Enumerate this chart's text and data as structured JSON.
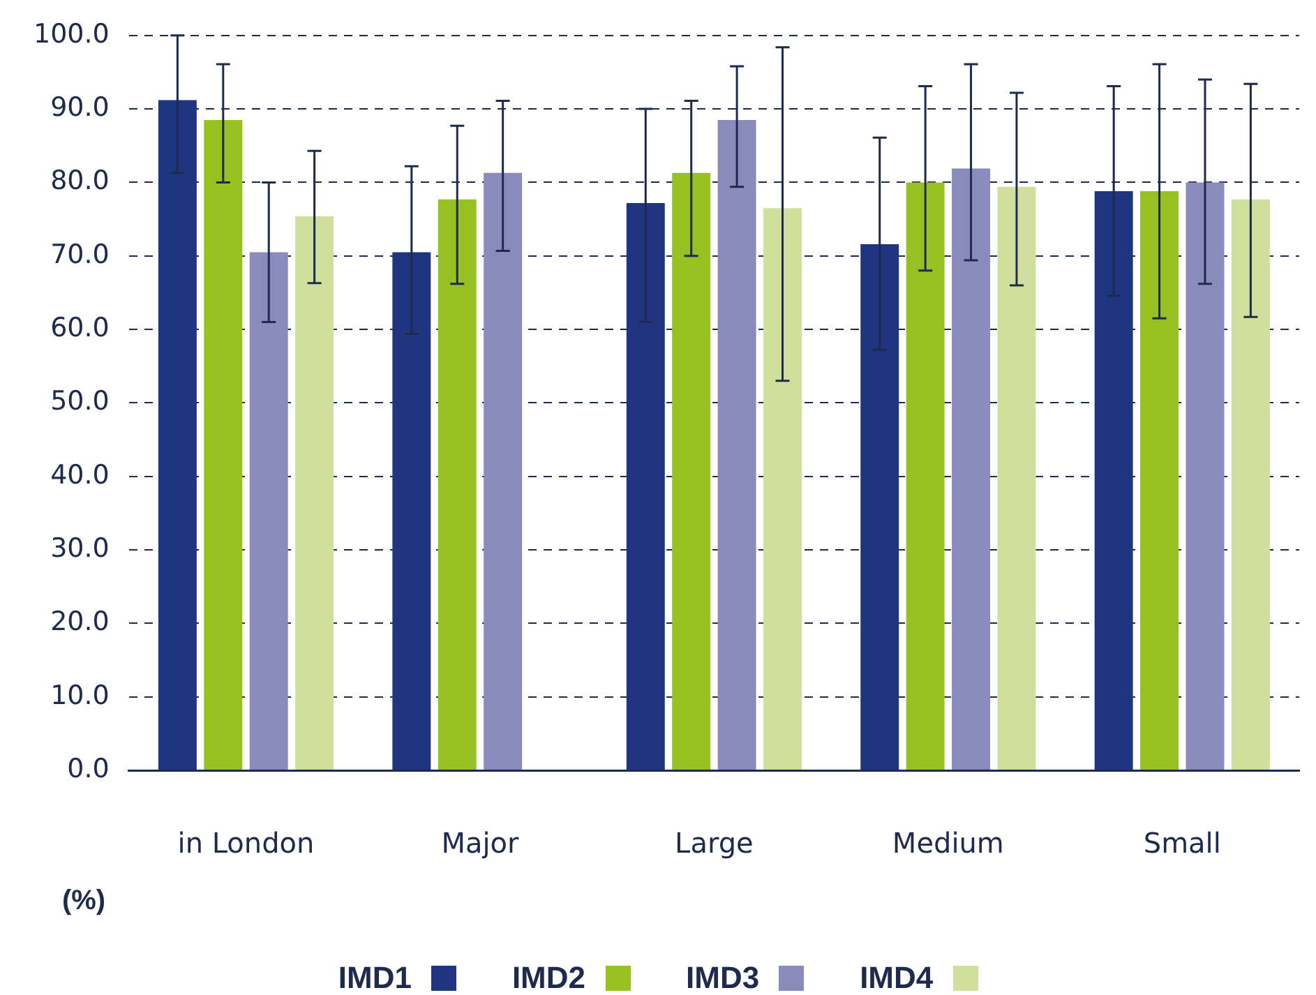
{
  "chart_data": {
    "type": "bar",
    "ylabel": "(%)",
    "categories": [
      "in London",
      "Major",
      "Large",
      "Medium",
      "Small"
    ],
    "series": [
      {
        "name": "IMD1",
        "color": "#1f3580",
        "values": [
          91.2,
          70.5,
          77.2,
          71.6,
          78.8
        ],
        "errors": [
          [
            81.3,
            100
          ],
          [
            59.4,
            82.2
          ],
          [
            61,
            90
          ],
          [
            57.2,
            86.1
          ],
          [
            64.6,
            93.1
          ]
        ]
      },
      {
        "name": "IMD2",
        "color": "#97c121",
        "values": [
          88.5,
          77.7,
          81.3,
          80,
          78.8
        ],
        "errors": [
          [
            80,
            96.1
          ],
          [
            66.2,
            87.7
          ],
          [
            70,
            91.1
          ],
          [
            68,
            93.1
          ],
          [
            61.5,
            96.1
          ]
        ]
      },
      {
        "name": "IMD3",
        "color": "#8a8bbd",
        "values": [
          70.5,
          81.3,
          88.5,
          81.9,
          80
        ],
        "errors": [
          [
            61,
            80
          ],
          [
            70.7,
            91.1
          ],
          [
            79.4,
            95.8
          ],
          [
            69.4,
            96.1
          ],
          [
            66.2,
            94
          ]
        ]
      },
      {
        "name": "IMD4",
        "color": "#d0e09c",
        "values": [
          75.4,
          null,
          76.5,
          79.4,
          77.7
        ],
        "errors": [
          [
            66.3,
            84.3
          ],
          null,
          [
            53,
            98.4
          ],
          [
            66,
            92.2
          ],
          [
            61.7,
            93.4
          ]
        ]
      }
    ],
    "ylim": [
      0,
      100
    ],
    "yticks": [
      {
        "value": 0,
        "label": "0.0"
      },
      {
        "value": 10,
        "label": "10.0"
      },
      {
        "value": 20,
        "label": "20.0"
      },
      {
        "value": 30,
        "label": "30.0"
      },
      {
        "value": 40,
        "label": "40.0"
      },
      {
        "value": 50,
        "label": "50.0"
      },
      {
        "value": 60,
        "label": "60.0"
      },
      {
        "value": 70,
        "label": "70.0"
      },
      {
        "value": 80,
        "label": "80.0"
      },
      {
        "value": 90,
        "label": "90.0"
      },
      {
        "value": 100,
        "label": "100.0"
      }
    ],
    "grid": "y",
    "legend": "bottom"
  }
}
